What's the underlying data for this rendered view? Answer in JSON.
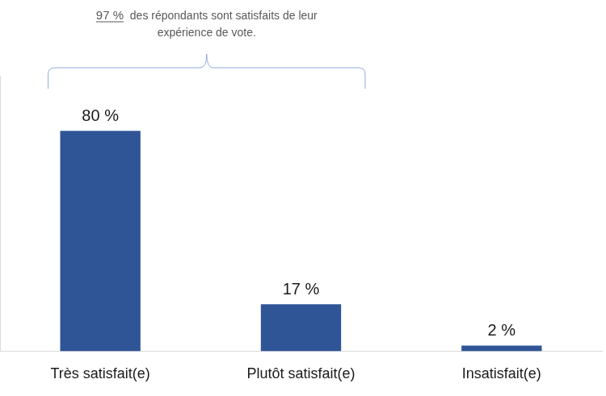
{
  "chart_data": {
    "type": "bar",
    "categories": [
      "Très satisfait(e)",
      "Plutôt satisfait(e)",
      "Insatisfait(e)"
    ],
    "values": [
      80,
      17,
      2
    ],
    "value_labels": [
      "80 %",
      "17 %",
      "2 %"
    ],
    "color": "#2f5597",
    "ylim": [
      0,
      100
    ],
    "grid": false,
    "data_labels": true,
    "tick_labels": "x",
    "annotation": {
      "highlight": "97 %",
      "text": "des répondants sont satisfaits de leur expérience de vote."
    }
  }
}
